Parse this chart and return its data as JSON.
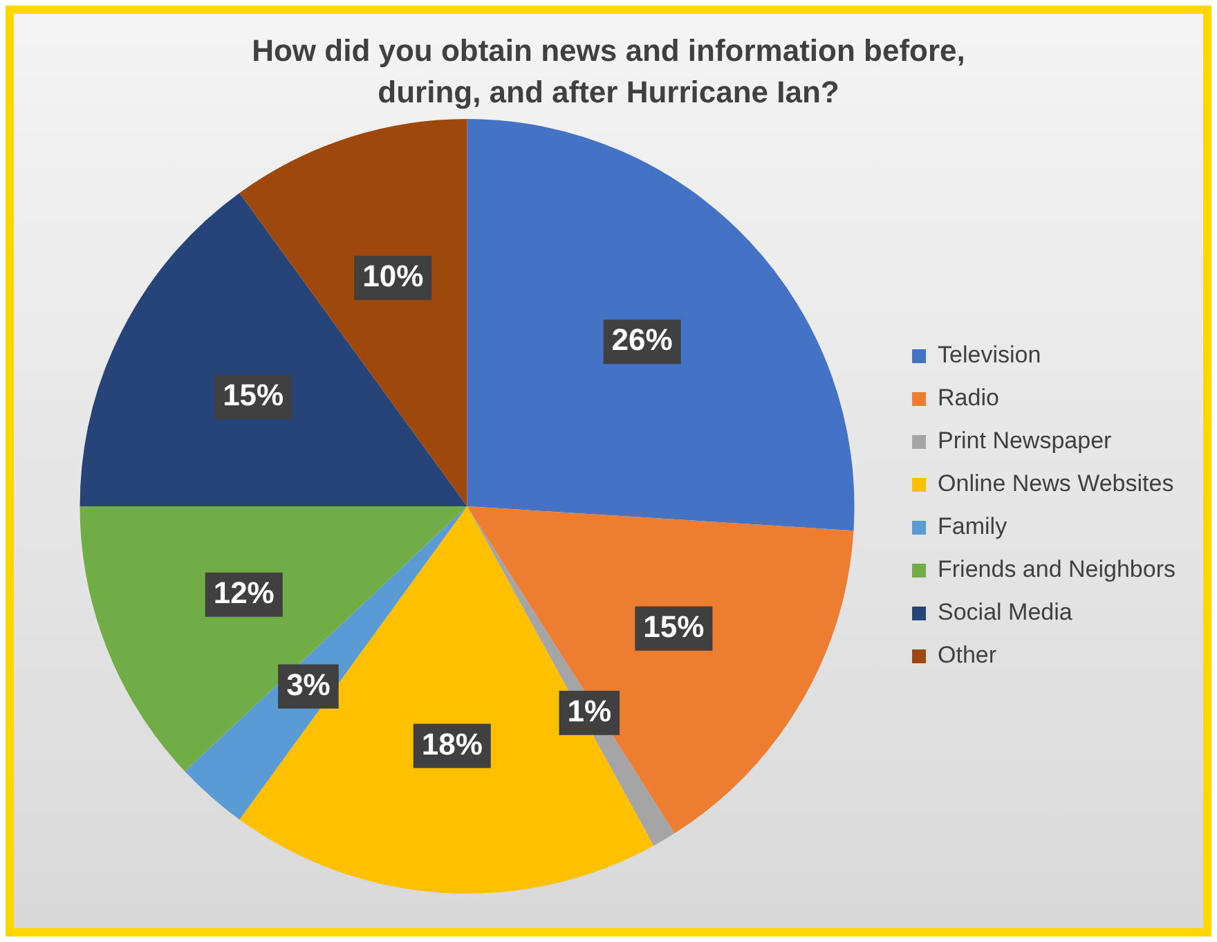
{
  "chart_data": {
    "type": "pie",
    "title": "How did you obtain news and information before, during, and after Hurricane Ian?",
    "categories": [
      "Television",
      "Radio",
      "Print Newspaper",
      "Online News Websites",
      "Family",
      "Friends and Neighbors",
      "Social Media",
      "Other"
    ],
    "values": [
      26,
      15,
      1,
      18,
      3,
      12,
      15,
      10
    ],
    "colors": [
      "#4472c4",
      "#ed7d31",
      "#a5a5a5",
      "#ffc000",
      "#5b9bd5",
      "#70ad47",
      "#264478",
      "#9e480e"
    ],
    "value_labels": [
      "26%",
      "15%",
      "1%",
      "18%",
      "3%",
      "12%",
      "15%",
      "10%"
    ],
    "legend": "right"
  }
}
